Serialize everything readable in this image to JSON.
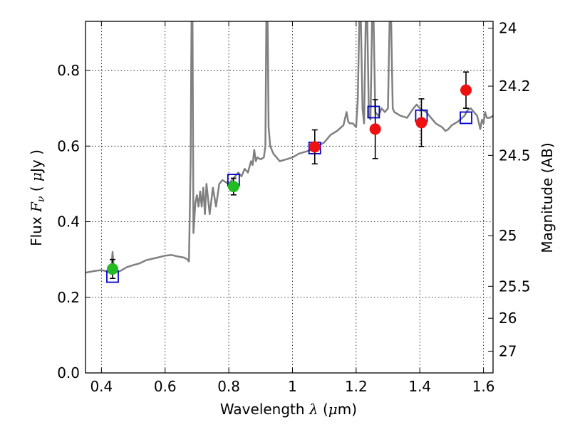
{
  "chart_data": {
    "type": "scatter",
    "xlabel": {
      "prefix": "Wavelength ",
      "symbol": "λ",
      "mid": " (",
      "unit_symbol": "μ",
      "suffix": "m)"
    },
    "ylabel": {
      "prefix": "Flux ",
      "symbol": "F",
      "sub": "ν",
      "mid": " ( ",
      "unit_symbol": "μ",
      "suffix": "Jy )"
    },
    "y2label": "Magnitude (AB)",
    "xlim": [
      0.35,
      1.63
    ],
    "ylim": [
      0.0,
      0.93
    ],
    "grid": true,
    "x_ticks": [
      {
        "value": 0.4,
        "label": "0.4"
      },
      {
        "value": 0.6,
        "label": "0.6"
      },
      {
        "value": 0.8,
        "label": "0.8"
      },
      {
        "value": 1.0,
        "label": "1"
      },
      {
        "value": 1.2,
        "label": "1.2"
      },
      {
        "value": 1.4,
        "label": "1.4"
      },
      {
        "value": 1.6,
        "label": "1.6"
      }
    ],
    "y_ticks": [
      {
        "value": 0.0,
        "label": "0.0"
      },
      {
        "value": 0.2,
        "label": "0.2"
      },
      {
        "value": 0.4,
        "label": "0.4"
      },
      {
        "value": 0.6,
        "label": "0.6"
      },
      {
        "value": 0.8,
        "label": "0.8"
      }
    ],
    "y2_ticks": [
      {
        "mag": 24,
        "label": "24"
      },
      {
        "mag": 24.2,
        "label": "24.2"
      },
      {
        "mag": 24.5,
        "label": "24.5"
      },
      {
        "mag": 25,
        "label": "25"
      },
      {
        "mag": 25.5,
        "label": "25.5"
      },
      {
        "mag": 26,
        "label": "26"
      },
      {
        "mag": 27,
        "label": "27"
      }
    ],
    "series": [
      {
        "name": "model-spectrum",
        "kind": "line",
        "color": "#808080",
        "points": [
          [
            0.35,
            0.265
          ],
          [
            0.38,
            0.27
          ],
          [
            0.4,
            0.272
          ],
          [
            0.42,
            0.268
          ],
          [
            0.43,
            0.262
          ],
          [
            0.435,
            0.32
          ],
          [
            0.44,
            0.265
          ],
          [
            0.46,
            0.27
          ],
          [
            0.48,
            0.28
          ],
          [
            0.5,
            0.285
          ],
          [
            0.52,
            0.29
          ],
          [
            0.54,
            0.298
          ],
          [
            0.56,
            0.302
          ],
          [
            0.58,
            0.306
          ],
          [
            0.6,
            0.31
          ],
          [
            0.62,
            0.312
          ],
          [
            0.64,
            0.308
          ],
          [
            0.66,
            0.305
          ],
          [
            0.67,
            0.3
          ],
          [
            0.675,
            0.295
          ],
          [
            0.68,
            0.55
          ],
          [
            0.683,
            0.93
          ],
          [
            0.686,
            0.93
          ],
          [
            0.689,
            0.37
          ],
          [
            0.695,
            0.45
          ],
          [
            0.7,
            0.47
          ],
          [
            0.705,
            0.44
          ],
          [
            0.71,
            0.48
          ],
          [
            0.715,
            0.44
          ],
          [
            0.72,
            0.49
          ],
          [
            0.725,
            0.42
          ],
          [
            0.73,
            0.5
          ],
          [
            0.74,
            0.42
          ],
          [
            0.75,
            0.49
          ],
          [
            0.76,
            0.44
          ],
          [
            0.77,
            0.5
          ],
          [
            0.78,
            0.51
          ],
          [
            0.79,
            0.505
          ],
          [
            0.8,
            0.5
          ],
          [
            0.81,
            0.51
          ],
          [
            0.82,
            0.52
          ],
          [
            0.83,
            0.53
          ],
          [
            0.84,
            0.52
          ],
          [
            0.85,
            0.54
          ],
          [
            0.86,
            0.53
          ],
          [
            0.87,
            0.56
          ],
          [
            0.875,
            0.55
          ],
          [
            0.88,
            0.59
          ],
          [
            0.885,
            0.56
          ],
          [
            0.89,
            0.57
          ],
          [
            0.9,
            0.565
          ],
          [
            0.91,
            0.57
          ],
          [
            0.915,
            0.6
          ],
          [
            0.918,
            0.93
          ],
          [
            0.922,
            0.93
          ],
          [
            0.925,
            0.65
          ],
          [
            0.93,
            0.6
          ],
          [
            0.94,
            0.58
          ],
          [
            0.95,
            0.57
          ],
          [
            0.96,
            0.56
          ],
          [
            0.98,
            0.565
          ],
          [
            1.0,
            0.57
          ],
          [
            1.02,
            0.58
          ],
          [
            1.04,
            0.585
          ],
          [
            1.06,
            0.59
          ],
          [
            1.08,
            0.6
          ],
          [
            1.1,
            0.61
          ],
          [
            1.12,
            0.63
          ],
          [
            1.14,
            0.64
          ],
          [
            1.16,
            0.655
          ],
          [
            1.17,
            0.69
          ],
          [
            1.175,
            0.665
          ],
          [
            1.18,
            0.66
          ],
          [
            1.19,
            0.66
          ],
          [
            1.2,
            0.65
          ],
          [
            1.205,
            0.72
          ],
          [
            1.21,
            0.93
          ],
          [
            1.215,
            0.93
          ],
          [
            1.22,
            0.7
          ],
          [
            1.225,
            0.66
          ],
          [
            1.23,
            0.93
          ],
          [
            1.235,
            0.93
          ],
          [
            1.24,
            0.68
          ],
          [
            1.245,
            0.67
          ],
          [
            1.25,
            0.93
          ],
          [
            1.255,
            0.93
          ],
          [
            1.26,
            0.69
          ],
          [
            1.27,
            0.68
          ],
          [
            1.28,
            0.7
          ],
          [
            1.29,
            0.69
          ],
          [
            1.3,
            0.7
          ],
          [
            1.305,
            0.93
          ],
          [
            1.31,
            0.93
          ],
          [
            1.315,
            0.7
          ],
          [
            1.32,
            0.69
          ],
          [
            1.34,
            0.68
          ],
          [
            1.36,
            0.675
          ],
          [
            1.38,
            0.7
          ],
          [
            1.39,
            0.71
          ],
          [
            1.4,
            0.7
          ],
          [
            1.42,
            0.69
          ],
          [
            1.44,
            0.67
          ],
          [
            1.45,
            0.66
          ],
          [
            1.46,
            0.655
          ],
          [
            1.47,
            0.65
          ],
          [
            1.48,
            0.64
          ],
          [
            1.49,
            0.645
          ],
          [
            1.5,
            0.655
          ],
          [
            1.52,
            0.665
          ],
          [
            1.54,
            0.68
          ],
          [
            1.55,
            0.695
          ],
          [
            1.56,
            0.7
          ],
          [
            1.57,
            0.69
          ],
          [
            1.58,
            0.68
          ],
          [
            1.59,
            0.645
          ],
          [
            1.595,
            0.67
          ],
          [
            1.6,
            0.66
          ],
          [
            1.605,
            0.69
          ],
          [
            1.61,
            0.675
          ],
          [
            1.62,
            0.675
          ],
          [
            1.63,
            0.68
          ]
        ]
      },
      {
        "name": "model-photometry",
        "kind": "square",
        "color": "#0000cc",
        "points": [
          [
            0.435,
            0.255
          ],
          [
            0.815,
            0.51
          ],
          [
            1.07,
            0.595
          ],
          [
            1.255,
            0.69
          ],
          [
            1.405,
            0.68
          ],
          [
            1.545,
            0.675
          ]
        ]
      },
      {
        "name": "optical-photometry",
        "kind": "circle",
        "color": "#22bb22",
        "points": [
          {
            "x": 0.435,
            "y": 0.275,
            "err": 0.025
          },
          {
            "x": 0.815,
            "y": 0.493,
            "err": 0.022
          }
        ]
      },
      {
        "name": "nir-photometry",
        "kind": "circle",
        "color": "#ee1111",
        "points": [
          {
            "x": 1.07,
            "y": 0.598,
            "err": 0.045
          },
          {
            "x": 1.26,
            "y": 0.645,
            "err": 0.078
          },
          {
            "x": 1.405,
            "y": 0.662,
            "err": 0.063
          },
          {
            "x": 1.545,
            "y": 0.748,
            "err": 0.048
          }
        ]
      }
    ]
  }
}
